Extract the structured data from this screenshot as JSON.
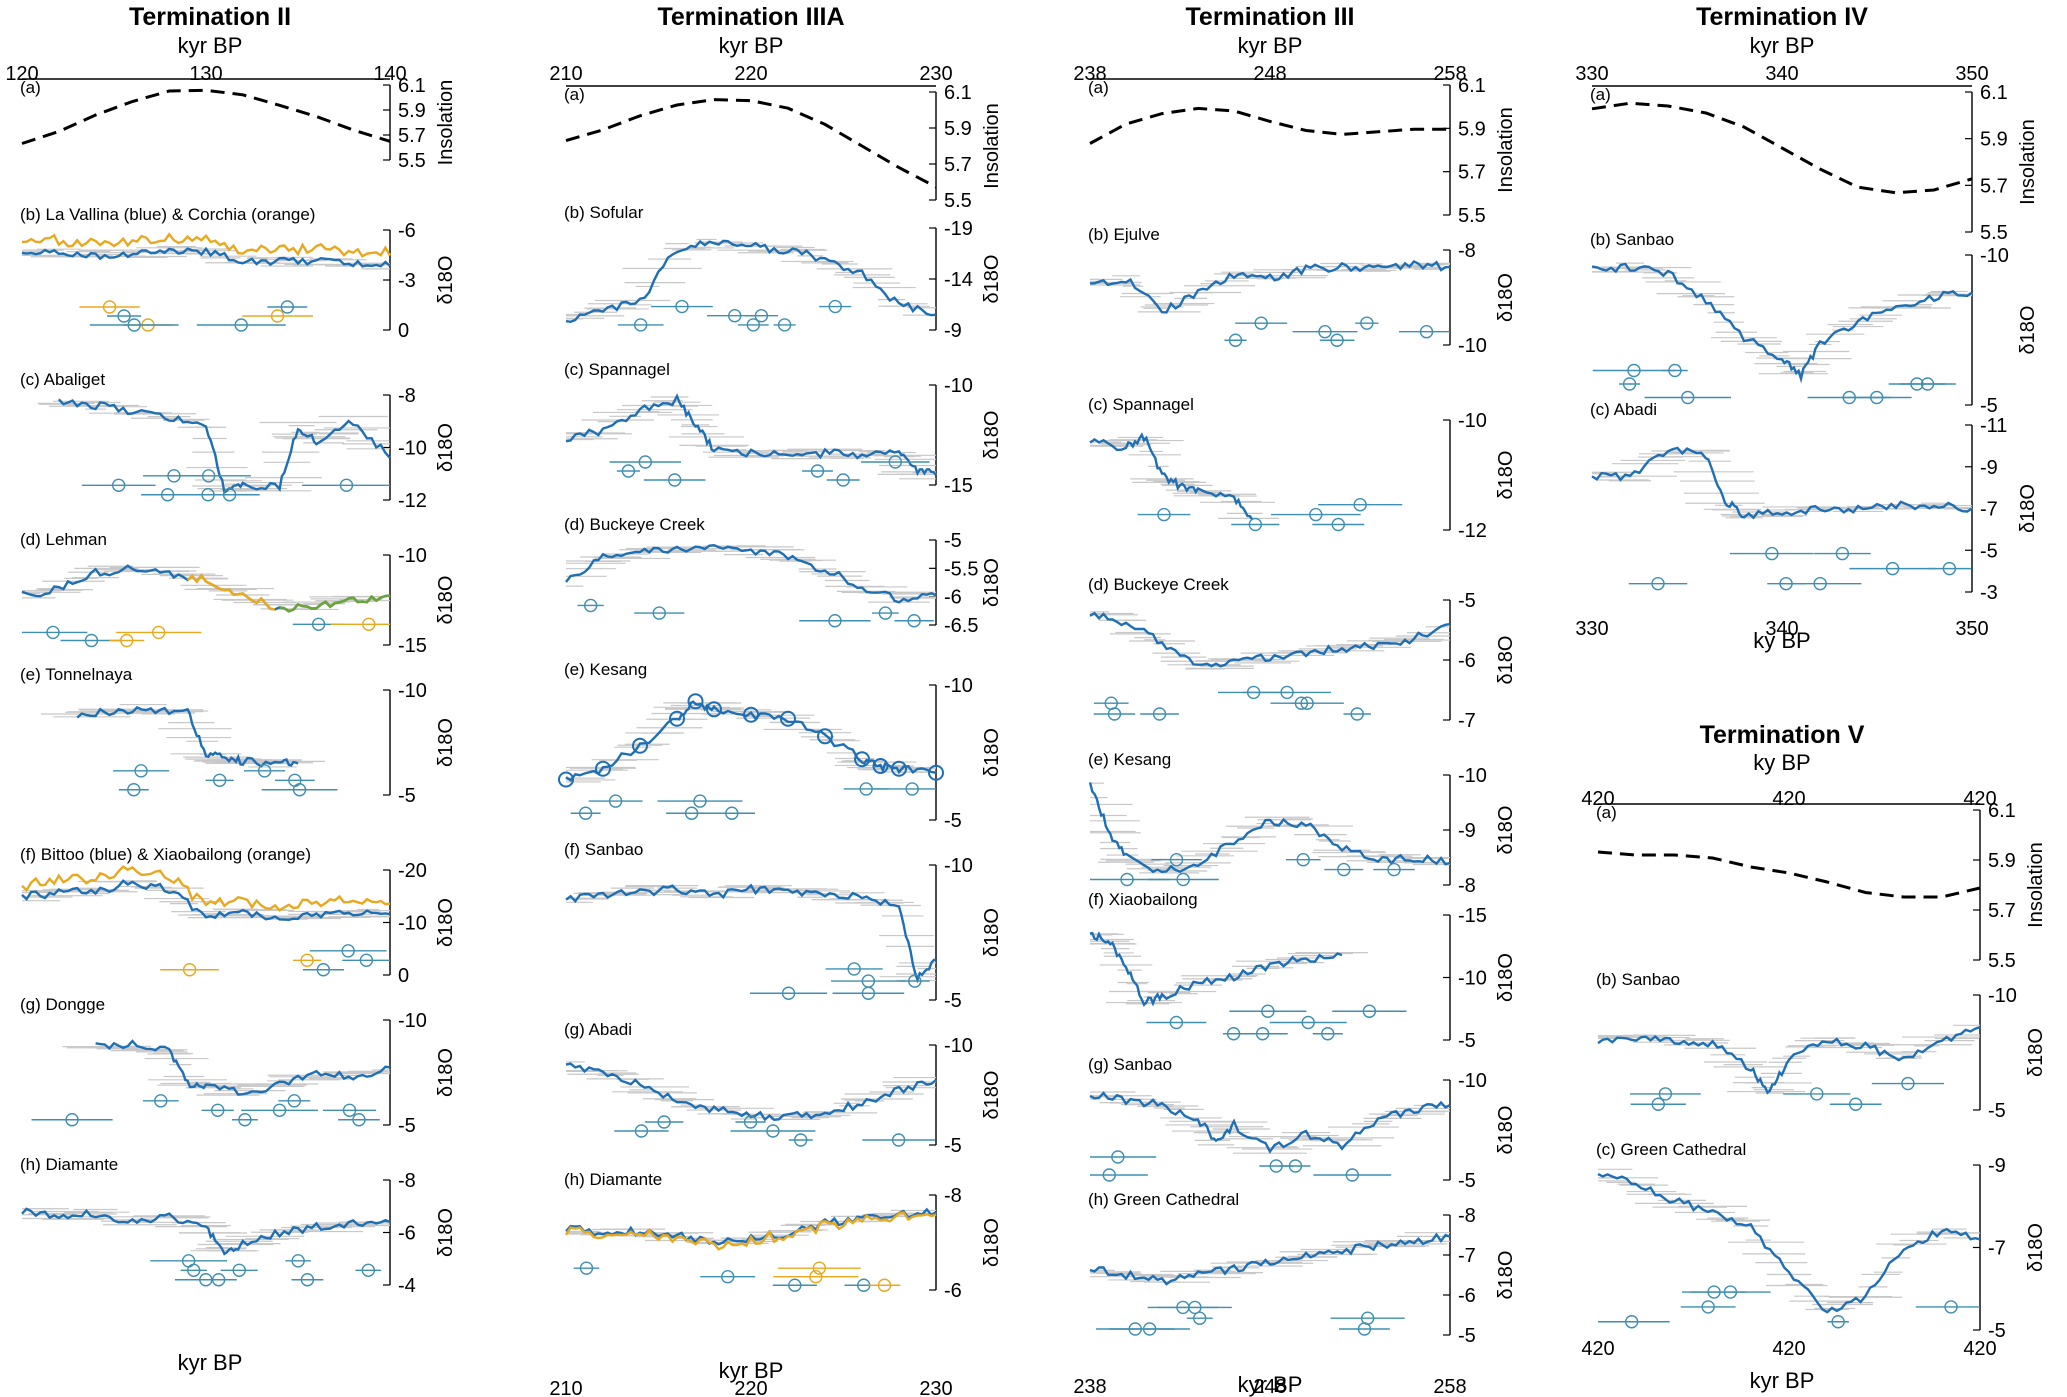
{
  "chart_data": [
    {
      "type": "column",
      "title": "Termination II",
      "top_unit": "kyr BP",
      "bottom_unit": "kyr BP",
      "x_ticks": [
        "120",
        "130",
        "140"
      ]
    },
    {
      "type": "column",
      "title": "Termination IIIA",
      "top_unit": "kyr BP",
      "bottom_unit": "kyr BP",
      "x_ticks": [
        "210",
        "220",
        "230"
      ]
    },
    {
      "type": "column",
      "title": "Termination III",
      "top_unit": "kyr BP",
      "bottom_unit": "kyr BP",
      "x_ticks": [
        "238",
        "248",
        "258"
      ]
    },
    {
      "type": "column",
      "title": "Termination IV",
      "top_unit": "kyr BP",
      "bottom_unit": "ky BP",
      "x_ticks": [
        "330",
        "340",
        "350"
      ]
    },
    {
      "type": "column",
      "title": "Termination V",
      "top_unit": "ky BP",
      "bottom_unit": "kyr BP",
      "x_ticks": [
        "420",
        "420",
        "420"
      ]
    },
    {
      "type": "line",
      "panel": "(a)",
      "name": "",
      "ylabel": "Insolation",
      "yticks": [
        "6.1",
        "5.9",
        "5.7",
        "5.5"
      ],
      "x": [
        0,
        0.1,
        0.2,
        0.3,
        0.4,
        0.5,
        0.6,
        0.7,
        0.8,
        0.9,
        1
      ],
      "y": [
        0.22,
        0.38,
        0.6,
        0.78,
        0.92,
        0.93,
        0.87,
        0.73,
        0.58,
        0.4,
        0.25
      ]
    },
    {
      "type": "line",
      "panel": "(b)",
      "name": "La Vallina (blue) & Corchia (orange)",
      "ylabel": "δ18O",
      "yticks": [
        "-6",
        "-3",
        "0"
      ],
      "x": [
        0,
        0.1,
        0.2,
        0.3,
        0.4,
        0.5,
        0.6,
        0.7,
        0.8,
        0.9,
        1
      ],
      "y": [
        0.8,
        0.78,
        0.75,
        0.76,
        0.8,
        0.78,
        0.7,
        0.68,
        0.7,
        0.66,
        0.64
      ]
    },
    {
      "type": "line",
      "panel": "(c)",
      "name": "Abaliget",
      "ylabel": "δ18O",
      "yticks": [
        "-8",
        "-10",
        "-12"
      ],
      "x": [
        0.1,
        0.2,
        0.3,
        0.4,
        0.5,
        0.55,
        0.6,
        0.7,
        0.75,
        0.8,
        0.9,
        1
      ],
      "y": [
        0.95,
        0.9,
        0.85,
        0.78,
        0.72,
        0.1,
        0.15,
        0.12,
        0.7,
        0.55,
        0.75,
        0.4
      ]
    },
    {
      "type": "line",
      "panel": "(d)",
      "name": "Lehman",
      "ylabel": "δ18O",
      "yticks": [
        "-10",
        "-15"
      ],
      "x": [
        0,
        0.1,
        0.2,
        0.3,
        0.4,
        0.5,
        0.6,
        0.7,
        0.8,
        0.9,
        1
      ],
      "y": [
        0.55,
        0.62,
        0.8,
        0.85,
        0.8,
        0.72,
        0.55,
        0.4,
        0.45,
        0.5,
        0.55
      ]
    },
    {
      "type": "line",
      "panel": "(e)",
      "name": "Tonnelnaya",
      "ylabel": "δ18O",
      "yticks": [
        "-10",
        "-5"
      ],
      "x": [
        0.15,
        0.25,
        0.35,
        0.45,
        0.5,
        0.55,
        0.6,
        0.7,
        0.75
      ],
      "y": [
        0.75,
        0.8,
        0.82,
        0.8,
        0.4,
        0.35,
        0.32,
        0.3,
        0.3
      ]
    },
    {
      "type": "line",
      "panel": "(f)",
      "name": "Bittoo (blue) & Xiaobailong (orange)",
      "ylabel": "δ18O",
      "yticks": [
        "-20",
        "-10",
        "0"
      ],
      "x": [
        0,
        0.1,
        0.2,
        0.3,
        0.4,
        0.5,
        0.6,
        0.7,
        0.8,
        0.9,
        1
      ],
      "y": [
        0.75,
        0.78,
        0.8,
        0.88,
        0.82,
        0.55,
        0.6,
        0.55,
        0.58,
        0.6,
        0.58
      ]
    },
    {
      "type": "line",
      "panel": "(g)",
      "name": "Dongge",
      "ylabel": "δ18O",
      "yticks": [
        "-10",
        "-5"
      ],
      "x": [
        0.2,
        0.3,
        0.4,
        0.45,
        0.5,
        0.6,
        0.7,
        0.8,
        0.9,
        1
      ],
      "y": [
        0.75,
        0.78,
        0.72,
        0.4,
        0.35,
        0.32,
        0.38,
        0.5,
        0.45,
        0.55
      ]
    },
    {
      "type": "line",
      "panel": "(h)",
      "name": "Diamante",
      "ylabel": "δ18O",
      "yticks": [
        "-8",
        "-6",
        "-4"
      ],
      "x": [
        0,
        0.1,
        0.2,
        0.3,
        0.4,
        0.5,
        0.55,
        0.6,
        0.7,
        0.8,
        0.9,
        1
      ],
      "y": [
        0.7,
        0.65,
        0.68,
        0.6,
        0.65,
        0.55,
        0.3,
        0.4,
        0.5,
        0.55,
        0.58,
        0.6
      ]
    },
    {
      "type": "line",
      "panel": "(a)",
      "name": "",
      "ylabel": "Insolation",
      "yticks": [
        "6.1",
        "5.9",
        "5.7",
        "5.5"
      ],
      "x": [
        0,
        0.1,
        0.2,
        0.3,
        0.4,
        0.5,
        0.6,
        0.7,
        0.8,
        0.9,
        1
      ],
      "y": [
        0.55,
        0.65,
        0.78,
        0.88,
        0.93,
        0.92,
        0.85,
        0.7,
        0.5,
        0.3,
        0.12
      ]
    },
    {
      "type": "line",
      "panel": "(b)",
      "name": "Sofular",
      "ylabel": "δ18O",
      "yticks": [
        "-19",
        "-14",
        "-9"
      ],
      "x": [
        0,
        0.1,
        0.2,
        0.3,
        0.4,
        0.5,
        0.6,
        0.7,
        0.8,
        0.9,
        1
      ],
      "y": [
        0.1,
        0.2,
        0.28,
        0.8,
        0.85,
        0.82,
        0.78,
        0.7,
        0.55,
        0.25,
        0.15
      ]
    },
    {
      "type": "line",
      "panel": "(c)",
      "name": "Spannagel",
      "ylabel": "δ18O",
      "yticks": [
        "-10",
        "-15"
      ],
      "x": [
        0,
        0.1,
        0.2,
        0.3,
        0.35,
        0.4,
        0.5,
        0.6,
        0.7,
        0.8,
        0.9,
        0.95,
        1
      ],
      "y": [
        0.45,
        0.55,
        0.75,
        0.85,
        0.6,
        0.35,
        0.32,
        0.3,
        0.32,
        0.3,
        0.32,
        0.15,
        0.1
      ]
    },
    {
      "type": "line",
      "panel": "(d)",
      "name": "Buckeye Creek",
      "ylabel": "δ18O",
      "yticks": [
        "-5",
        "-5.5",
        "-6",
        "-6.5"
      ],
      "x": [
        0,
        0.1,
        0.2,
        0.3,
        0.4,
        0.5,
        0.6,
        0.7,
        0.8,
        0.9,
        1
      ],
      "y": [
        0.5,
        0.8,
        0.85,
        0.88,
        0.9,
        0.88,
        0.8,
        0.65,
        0.45,
        0.3,
        0.35
      ]
    },
    {
      "type": "line",
      "panel": "(e)",
      "name": "Kesang",
      "ylabel": "δ18O",
      "yticks": [
        "-10",
        "-5"
      ],
      "x": [
        0,
        0.1,
        0.2,
        0.3,
        0.35,
        0.4,
        0.5,
        0.6,
        0.7,
        0.8,
        0.85,
        0.9,
        1
      ],
      "y": [
        0.3,
        0.38,
        0.55,
        0.75,
        0.88,
        0.82,
        0.78,
        0.75,
        0.62,
        0.45,
        0.4,
        0.38,
        0.35
      ]
    },
    {
      "type": "line",
      "panel": "(f)",
      "name": "Sanbao",
      "ylabel": "δ18O",
      "yticks": [
        "-10",
        "-5"
      ],
      "x": [
        0,
        0.1,
        0.2,
        0.3,
        0.4,
        0.5,
        0.6,
        0.7,
        0.8,
        0.9,
        0.95,
        1
      ],
      "y": [
        0.75,
        0.78,
        0.8,
        0.82,
        0.78,
        0.82,
        0.8,
        0.78,
        0.76,
        0.7,
        0.15,
        0.3
      ]
    },
    {
      "type": "line",
      "panel": "(g)",
      "name": "Abadi",
      "ylabel": "δ18O",
      "yticks": [
        "-10",
        "-5"
      ],
      "x": [
        0,
        0.1,
        0.2,
        0.3,
        0.4,
        0.5,
        0.6,
        0.7,
        0.8,
        0.9,
        1
      ],
      "y": [
        0.8,
        0.72,
        0.6,
        0.45,
        0.35,
        0.3,
        0.28,
        0.32,
        0.42,
        0.55,
        0.65
      ]
    },
    {
      "type": "line",
      "panel": "(h)",
      "name": "Diamante",
      "ylabel": "δ18O",
      "yticks": [
        "-8",
        "-6"
      ],
      "x": [
        0,
        0.1,
        0.2,
        0.3,
        0.4,
        0.5,
        0.6,
        0.7,
        0.8,
        0.9,
        1
      ],
      "y": [
        0.65,
        0.6,
        0.62,
        0.58,
        0.5,
        0.55,
        0.6,
        0.7,
        0.75,
        0.8,
        0.82
      ]
    },
    {
      "type": "line",
      "panel": "(a)",
      "name": "",
      "ylabel": "Insolation",
      "yticks": [
        "6.1",
        "5.9",
        "5.7",
        "5.5"
      ],
      "x": [
        0,
        0.1,
        0.2,
        0.3,
        0.4,
        0.5,
        0.6,
        0.7,
        0.8,
        0.9,
        1
      ],
      "y": [
        0.55,
        0.7,
        0.78,
        0.82,
        0.8,
        0.72,
        0.65,
        0.62,
        0.64,
        0.66,
        0.66
      ]
    },
    {
      "type": "line",
      "panel": "(b)",
      "name": "Ejulve",
      "ylabel": "δ18O",
      "yticks": [
        "-8",
        "-10"
      ],
      "x": [
        0,
        0.1,
        0.2,
        0.3,
        0.4,
        0.5,
        0.6,
        0.7,
        0.8,
        0.9,
        1
      ],
      "y": [
        0.65,
        0.7,
        0.35,
        0.55,
        0.75,
        0.7,
        0.8,
        0.82,
        0.8,
        0.85,
        0.82
      ]
    },
    {
      "type": "line",
      "panel": "(c)",
      "name": "Spannagel",
      "ylabel": "δ18O",
      "yticks": [
        "-10",
        "-12"
      ],
      "x": [
        0,
        0.1,
        0.15,
        0.2,
        0.25,
        0.3,
        0.4,
        0.45
      ],
      "y": [
        0.8,
        0.75,
        0.85,
        0.5,
        0.4,
        0.35,
        0.3,
        0.1
      ]
    },
    {
      "type": "line",
      "panel": "(d)",
      "name": "Buckeye Creek",
      "ylabel": "δ18O",
      "yticks": [
        "-5",
        "-6",
        "-7"
      ],
      "x": [
        0,
        0.1,
        0.2,
        0.3,
        0.4,
        0.5,
        0.6,
        0.7,
        0.8,
        0.9,
        1
      ],
      "y": [
        0.9,
        0.8,
        0.65,
        0.45,
        0.48,
        0.52,
        0.55,
        0.6,
        0.62,
        0.68,
        0.8
      ]
    },
    {
      "type": "line",
      "panel": "(e)",
      "name": "Kesang",
      "ylabel": "δ18O",
      "yticks": [
        "-10",
        "-9",
        "-8"
      ],
      "x": [
        0,
        0.05,
        0.1,
        0.2,
        0.3,
        0.4,
        0.5,
        0.6,
        0.7,
        0.8,
        0.9,
        1
      ],
      "y": [
        0.92,
        0.5,
        0.25,
        0.12,
        0.18,
        0.4,
        0.58,
        0.55,
        0.35,
        0.22,
        0.25,
        0.2
      ]
    },
    {
      "type": "line",
      "panel": "(f)",
      "name": "Xiaobailong",
      "ylabel": "δ18O",
      "yticks": [
        "-15",
        "-10",
        "-5"
      ],
      "x": [
        0,
        0.05,
        0.1,
        0.15,
        0.2,
        0.3,
        0.4,
        0.5,
        0.6,
        0.7
      ],
      "y": [
        0.85,
        0.8,
        0.6,
        0.3,
        0.35,
        0.45,
        0.5,
        0.6,
        0.65,
        0.68
      ]
    },
    {
      "type": "line",
      "panel": "(g)",
      "name": "Sanbao",
      "ylabel": "δ18O",
      "yticks": [
        "-10",
        "-5"
      ],
      "x": [
        0,
        0.1,
        0.2,
        0.3,
        0.35,
        0.4,
        0.5,
        0.6,
        0.7,
        0.8,
        0.9,
        1
      ],
      "y": [
        0.85,
        0.8,
        0.75,
        0.6,
        0.4,
        0.55,
        0.3,
        0.45,
        0.35,
        0.6,
        0.7,
        0.75
      ]
    },
    {
      "type": "line",
      "panel": "(h)",
      "name": "Green Cathedral",
      "ylabel": "δ18O",
      "yticks": [
        "-8",
        "-7",
        "-6",
        "-5"
      ],
      "x": [
        0,
        0.1,
        0.2,
        0.3,
        0.4,
        0.5,
        0.6,
        0.7,
        0.8,
        0.9,
        1
      ],
      "y": [
        0.55,
        0.5,
        0.45,
        0.5,
        0.55,
        0.6,
        0.65,
        0.7,
        0.75,
        0.78,
        0.82
      ]
    },
    {
      "type": "line",
      "panel": "(a)",
      "name": "",
      "ylabel": "Insolation",
      "yticks": [
        "6.1",
        "5.9",
        "5.7",
        "5.5"
      ],
      "x": [
        0,
        0.1,
        0.2,
        0.3,
        0.4,
        0.5,
        0.6,
        0.7,
        0.8,
        0.9,
        1
      ],
      "y": [
        0.88,
        0.92,
        0.9,
        0.85,
        0.75,
        0.6,
        0.45,
        0.32,
        0.28,
        0.3,
        0.38
      ]
    },
    {
      "type": "line",
      "panel": "(b)",
      "name": "Sanbao",
      "ylabel": "δ18O",
      "yticks": [
        "-10",
        "-5"
      ],
      "x": [
        0,
        0.1,
        0.2,
        0.3,
        0.4,
        0.5,
        0.55,
        0.6,
        0.7,
        0.8,
        0.9,
        1
      ],
      "y": [
        0.9,
        0.92,
        0.88,
        0.7,
        0.45,
        0.3,
        0.2,
        0.4,
        0.55,
        0.65,
        0.72,
        0.75
      ]
    },
    {
      "type": "line",
      "panel": "(c)",
      "name": "Abadi",
      "ylabel": "δ18O",
      "yticks": [
        "-11",
        "-9",
        "-7",
        "-5",
        "-3"
      ],
      "x": [
        0,
        0.1,
        0.2,
        0.3,
        0.35,
        0.4,
        0.5,
        0.6,
        0.7,
        0.8,
        0.9,
        1
      ],
      "y": [
        0.7,
        0.68,
        0.85,
        0.82,
        0.55,
        0.45,
        0.48,
        0.5,
        0.5,
        0.52,
        0.52,
        0.5
      ]
    },
    {
      "type": "line",
      "panel": "(a)",
      "name": "",
      "ylabel": "Insolation",
      "yticks": [
        "6.1",
        "5.9",
        "5.7",
        "5.5"
      ],
      "x": [
        0,
        0.1,
        0.2,
        0.3,
        0.4,
        0.5,
        0.6,
        0.7,
        0.8,
        0.9,
        1
      ],
      "y": [
        0.72,
        0.7,
        0.7,
        0.68,
        0.62,
        0.58,
        0.52,
        0.45,
        0.42,
        0.42,
        0.48
      ]
    },
    {
      "type": "line",
      "panel": "(b)",
      "name": "Sanbao",
      "ylabel": "δ18O",
      "yticks": [
        "-10",
        "-5"
      ],
      "x": [
        0,
        0.1,
        0.2,
        0.3,
        0.4,
        0.45,
        0.5,
        0.6,
        0.7,
        0.8,
        0.9,
        1
      ],
      "y": [
        0.6,
        0.62,
        0.6,
        0.58,
        0.35,
        0.15,
        0.45,
        0.6,
        0.55,
        0.45,
        0.6,
        0.72
      ]
    },
    {
      "type": "line",
      "panel": "(c)",
      "name": "Green Cathedral",
      "ylabel": "δ18O",
      "yticks": [
        "-9",
        "-7",
        "-5"
      ],
      "x": [
        0,
        0.1,
        0.2,
        0.3,
        0.4,
        0.5,
        0.6,
        0.7,
        0.8,
        0.9,
        1
      ],
      "y": [
        0.95,
        0.88,
        0.78,
        0.72,
        0.62,
        0.35,
        0.1,
        0.2,
        0.5,
        0.6,
        0.55
      ]
    }
  ]
}
